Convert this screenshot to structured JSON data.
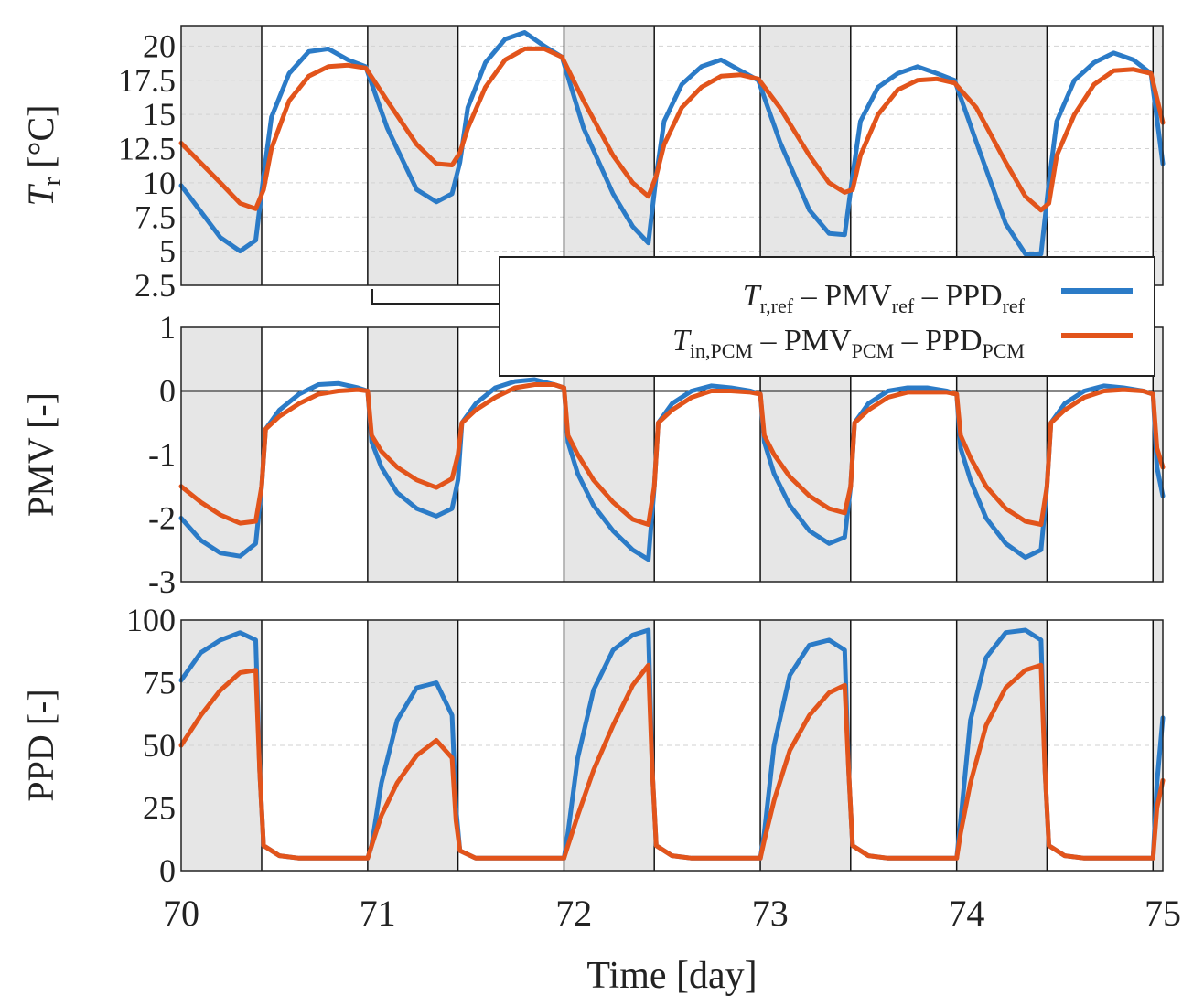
{
  "chart_data": [
    {
      "type": "line",
      "ylabel_main": "T",
      "ylabel_sub": "r",
      "ylabel_unit": " [°C]",
      "ylim": [
        2.5,
        21.5
      ],
      "yticks": [
        2.5,
        5,
        7.5,
        10,
        12.5,
        15,
        17.5,
        20
      ],
      "ytick_labels": [
        "2.5",
        "5",
        "7.5",
        "10",
        "12.5",
        "15",
        "17.5",
        "20"
      ],
      "grid": true,
      "series": [
        {
          "color": "#2b7bc7",
          "x": [
            70.0,
            70.2,
            70.3,
            70.38,
            70.42,
            70.46,
            70.55,
            70.65,
            70.75,
            70.85,
            70.94,
            71.05,
            71.2,
            71.3,
            71.38,
            71.42,
            71.46,
            71.55,
            71.65,
            71.75,
            71.85,
            71.94,
            72.05,
            72.2,
            72.3,
            72.38,
            72.42,
            72.46,
            72.55,
            72.65,
            72.75,
            72.85,
            72.94,
            73.05,
            73.2,
            73.3,
            73.38,
            73.42,
            73.46,
            73.55,
            73.65,
            73.75,
            73.85,
            73.94,
            74.05,
            74.2,
            74.3,
            74.38,
            74.42,
            74.46,
            74.55,
            74.65,
            74.75,
            74.85,
            74.94,
            75.0
          ],
          "y": [
            9.8,
            6.0,
            5.0,
            5.8,
            10.5,
            14.8,
            18.0,
            19.6,
            19.8,
            19.0,
            18.5,
            14.0,
            9.5,
            8.6,
            9.2,
            11.5,
            15.5,
            18.8,
            20.5,
            21.0,
            20.0,
            19.2,
            14.0,
            9.2,
            6.8,
            5.6,
            10.5,
            14.5,
            17.2,
            18.5,
            19.0,
            18.2,
            17.5,
            13.0,
            8.0,
            6.3,
            6.2,
            10.5,
            14.5,
            17.0,
            18.0,
            18.5,
            18.0,
            17.5,
            13.0,
            7.0,
            4.8,
            4.8,
            10.0,
            14.5,
            17.5,
            18.8,
            19.5,
            19.0,
            18.0,
            11.4
          ]
        },
        {
          "color": "#e2541b",
          "x": [
            70.0,
            70.2,
            70.3,
            70.38,
            70.42,
            70.46,
            70.55,
            70.65,
            70.75,
            70.85,
            70.94,
            71.05,
            71.2,
            71.3,
            71.38,
            71.42,
            71.46,
            71.55,
            71.65,
            71.75,
            71.85,
            71.94,
            72.05,
            72.2,
            72.3,
            72.38,
            72.42,
            72.46,
            72.55,
            72.65,
            72.75,
            72.85,
            72.94,
            73.05,
            73.2,
            73.3,
            73.38,
            73.42,
            73.46,
            73.55,
            73.65,
            73.75,
            73.85,
            73.94,
            74.05,
            74.2,
            74.3,
            74.38,
            74.42,
            74.46,
            74.55,
            74.65,
            74.75,
            74.85,
            74.94,
            75.0
          ],
          "y": [
            12.9,
            10.0,
            8.5,
            8.1,
            9.5,
            12.5,
            16.0,
            17.8,
            18.5,
            18.6,
            18.4,
            16.0,
            12.8,
            11.4,
            11.3,
            12.2,
            14.0,
            17.0,
            19.0,
            19.8,
            19.8,
            19.2,
            16.0,
            12.0,
            10.0,
            9.0,
            10.5,
            12.8,
            15.5,
            17.0,
            17.8,
            17.9,
            17.6,
            15.5,
            12.0,
            10.0,
            9.3,
            9.5,
            12.0,
            15.0,
            16.8,
            17.5,
            17.6,
            17.3,
            15.5,
            11.5,
            9.0,
            8.0,
            8.5,
            12.0,
            15.0,
            17.2,
            18.2,
            18.3,
            18.0,
            14.4
          ]
        }
      ]
    },
    {
      "type": "line",
      "ylabel": "PMV [-]",
      "ylim": [
        -3,
        1
      ],
      "yticks": [
        -3,
        -2,
        -1,
        0,
        1
      ],
      "ytick_labels": [
        "-3",
        "-2",
        "-1",
        "0",
        "1"
      ],
      "zero_line": true,
      "series": [
        {
          "color": "#2b7bc7",
          "x": [
            70.0,
            70.1,
            70.2,
            70.3,
            70.38,
            70.41,
            70.43,
            70.5,
            70.6,
            70.7,
            70.8,
            70.9,
            70.95,
            70.97,
            71.02,
            71.1,
            71.2,
            71.3,
            71.38,
            71.41,
            71.43,
            71.5,
            71.6,
            71.7,
            71.8,
            71.9,
            71.95,
            71.97,
            72.02,
            72.1,
            72.2,
            72.3,
            72.38,
            72.41,
            72.43,
            72.5,
            72.6,
            72.7,
            72.8,
            72.9,
            72.95,
            72.97,
            73.02,
            73.1,
            73.2,
            73.3,
            73.38,
            73.41,
            73.43,
            73.5,
            73.6,
            73.7,
            73.8,
            73.9,
            73.95,
            73.97,
            74.02,
            74.1,
            74.2,
            74.3,
            74.38,
            74.41,
            74.43,
            74.5,
            74.6,
            74.7,
            74.8,
            74.9,
            74.95,
            74.97,
            75.0
          ],
          "y": [
            -2.0,
            -2.35,
            -2.55,
            -2.6,
            -2.4,
            -1.5,
            -0.6,
            -0.3,
            -0.05,
            0.1,
            0.12,
            0.05,
            0.0,
            -0.8,
            -1.2,
            -1.6,
            -1.85,
            -1.97,
            -1.85,
            -1.4,
            -0.5,
            -0.2,
            0.05,
            0.15,
            0.18,
            0.1,
            0.05,
            -0.8,
            -1.3,
            -1.8,
            -2.2,
            -2.5,
            -2.65,
            -1.5,
            -0.5,
            -0.2,
            0.0,
            0.08,
            0.05,
            0.0,
            -0.05,
            -0.8,
            -1.3,
            -1.8,
            -2.2,
            -2.4,
            -2.3,
            -1.5,
            -0.5,
            -0.2,
            0.0,
            0.05,
            0.05,
            0.0,
            -0.05,
            -0.9,
            -1.4,
            -2.0,
            -2.4,
            -2.62,
            -2.5,
            -1.5,
            -0.5,
            -0.2,
            0.0,
            0.08,
            0.05,
            0.0,
            -0.05,
            -1.2,
            -1.65
          ]
        },
        {
          "color": "#e2541b",
          "x": [
            70.0,
            70.1,
            70.2,
            70.3,
            70.38,
            70.41,
            70.43,
            70.5,
            70.6,
            70.7,
            70.8,
            70.9,
            70.95,
            70.97,
            71.02,
            71.1,
            71.2,
            71.3,
            71.38,
            71.41,
            71.43,
            71.5,
            71.6,
            71.7,
            71.8,
            71.9,
            71.95,
            71.97,
            72.02,
            72.1,
            72.2,
            72.3,
            72.38,
            72.41,
            72.43,
            72.5,
            72.6,
            72.7,
            72.8,
            72.9,
            72.95,
            72.97,
            73.02,
            73.1,
            73.2,
            73.3,
            73.38,
            73.41,
            73.43,
            73.5,
            73.6,
            73.7,
            73.8,
            73.9,
            73.95,
            73.97,
            74.02,
            74.1,
            74.2,
            74.3,
            74.38,
            74.41,
            74.43,
            74.5,
            74.6,
            74.7,
            74.8,
            74.9,
            74.95,
            74.97,
            75.0
          ],
          "y": [
            -1.5,
            -1.75,
            -1.95,
            -2.08,
            -2.05,
            -1.5,
            -0.6,
            -0.4,
            -0.2,
            -0.05,
            0.0,
            0.02,
            0.0,
            -0.7,
            -0.95,
            -1.2,
            -1.4,
            -1.52,
            -1.38,
            -1.0,
            -0.5,
            -0.3,
            -0.1,
            0.05,
            0.1,
            0.1,
            0.05,
            -0.7,
            -1.0,
            -1.4,
            -1.75,
            -2.02,
            -2.1,
            -1.5,
            -0.5,
            -0.3,
            -0.1,
            0.0,
            0.0,
            -0.02,
            -0.05,
            -0.7,
            -1.0,
            -1.35,
            -1.65,
            -1.85,
            -1.92,
            -1.5,
            -0.5,
            -0.3,
            -0.1,
            -0.02,
            -0.02,
            -0.02,
            -0.05,
            -0.7,
            -1.05,
            -1.5,
            -1.85,
            -2.05,
            -2.1,
            -1.5,
            -0.5,
            -0.3,
            -0.1,
            0.0,
            0.02,
            0.0,
            -0.05,
            -0.9,
            -1.2
          ]
        }
      ]
    },
    {
      "type": "line",
      "ylabel": "PPD [-]",
      "xlabel": "Time [day]",
      "ylim": [
        0,
        100
      ],
      "yticks": [
        0,
        25,
        50,
        75,
        100
      ],
      "ytick_labels": [
        "0",
        "25",
        "50",
        "75",
        "100"
      ],
      "xlim": [
        70,
        75
      ],
      "xticks": [
        70,
        71,
        72,
        73,
        74,
        75
      ],
      "xtick_labels": [
        "70",
        "71",
        "72",
        "73",
        "74",
        "75"
      ],
      "grid": true,
      "series": [
        {
          "color": "#2b7bc7",
          "x": [
            70.0,
            70.1,
            70.2,
            70.3,
            70.38,
            70.4,
            70.42,
            70.5,
            70.6,
            70.7,
            70.8,
            70.9,
            70.95,
            70.97,
            71.02,
            71.1,
            71.2,
            71.3,
            71.38,
            71.4,
            71.42,
            71.5,
            71.6,
            71.7,
            71.8,
            71.9,
            71.95,
            71.97,
            72.02,
            72.1,
            72.2,
            72.3,
            72.38,
            72.4,
            72.42,
            72.5,
            72.6,
            72.7,
            72.8,
            72.9,
            72.95,
            72.97,
            73.02,
            73.1,
            73.2,
            73.3,
            73.38,
            73.4,
            73.42,
            73.5,
            73.6,
            73.7,
            73.8,
            73.9,
            73.95,
            73.97,
            74.02,
            74.1,
            74.2,
            74.3,
            74.38,
            74.4,
            74.42,
            74.5,
            74.6,
            74.7,
            74.8,
            74.9,
            74.95,
            74.97,
            75.0
          ],
          "y": [
            76,
            87,
            92,
            95,
            92,
            40,
            10,
            6,
            5,
            5,
            5,
            5,
            5,
            10,
            35,
            60,
            73,
            75,
            62,
            25,
            8,
            5,
            5,
            5,
            5,
            5,
            5,
            15,
            45,
            72,
            88,
            94,
            96,
            40,
            10,
            6,
            5,
            5,
            5,
            5,
            5,
            15,
            50,
            78,
            90,
            92,
            88,
            40,
            10,
            6,
            5,
            5,
            5,
            5,
            5,
            20,
            60,
            85,
            95,
            96,
            92,
            40,
            10,
            6,
            5,
            5,
            5,
            5,
            5,
            35,
            61
          ]
        },
        {
          "color": "#e2541b",
          "x": [
            70.0,
            70.1,
            70.2,
            70.3,
            70.38,
            70.4,
            70.42,
            70.5,
            70.6,
            70.7,
            70.8,
            70.9,
            70.95,
            70.97,
            71.02,
            71.1,
            71.2,
            71.3,
            71.38,
            71.4,
            71.42,
            71.5,
            71.6,
            71.7,
            71.8,
            71.9,
            71.95,
            71.97,
            72.02,
            72.1,
            72.2,
            72.3,
            72.38,
            72.4,
            72.42,
            72.5,
            72.6,
            72.7,
            72.8,
            72.9,
            72.95,
            72.97,
            73.02,
            73.1,
            73.2,
            73.3,
            73.38,
            73.4,
            73.42,
            73.5,
            73.6,
            73.7,
            73.8,
            73.9,
            73.95,
            73.97,
            74.02,
            74.1,
            74.2,
            74.3,
            74.38,
            74.4,
            74.42,
            74.5,
            74.6,
            74.7,
            74.8,
            74.9,
            74.95,
            74.97,
            75.0
          ],
          "y": [
            50,
            62,
            72,
            79,
            80,
            40,
            10,
            6,
            5,
            5,
            5,
            5,
            5,
            10,
            22,
            35,
            46,
            52,
            45,
            20,
            8,
            5,
            5,
            5,
            5,
            5,
            5,
            10,
            22,
            40,
            58,
            74,
            82,
            40,
            10,
            6,
            5,
            5,
            5,
            5,
            5,
            12,
            28,
            48,
            62,
            71,
            74,
            40,
            10,
            6,
            5,
            5,
            5,
            5,
            5,
            15,
            35,
            58,
            73,
            80,
            82,
            40,
            10,
            6,
            5,
            5,
            5,
            5,
            5,
            25,
            36
          ]
        }
      ]
    }
  ],
  "legend": {
    "placement": "center-right",
    "entries": [
      {
        "color": "#2b7bc7",
        "parts": [
          {
            "text": "T",
            "style": "italic"
          },
          {
            "text": "r,ref",
            "style": "sub"
          },
          {
            "text": " – PMV",
            "style": "normal"
          },
          {
            "text": "ref",
            "style": "sub"
          },
          {
            "text": " – PPD",
            "style": "normal"
          },
          {
            "text": "ref",
            "style": "sub"
          }
        ]
      },
      {
        "color": "#e2541b",
        "parts": [
          {
            "text": "T",
            "style": "italic"
          },
          {
            "text": "in,PCM",
            "style": "sub"
          },
          {
            "text": " – PMV",
            "style": "normal"
          },
          {
            "text": "PCM",
            "style": "sub"
          },
          {
            "text": " – PPD",
            "style": "normal"
          },
          {
            "text": "PCM",
            "style": "sub"
          }
        ]
      }
    ]
  },
  "shading": {
    "color": "#e6e6e6",
    "bands": [
      [
        70.0,
        70.41
      ],
      [
        70.95,
        71.41
      ],
      [
        71.95,
        72.41
      ],
      [
        72.95,
        73.41
      ],
      [
        73.95,
        74.41
      ],
      [
        74.95,
        75.0
      ]
    ]
  }
}
